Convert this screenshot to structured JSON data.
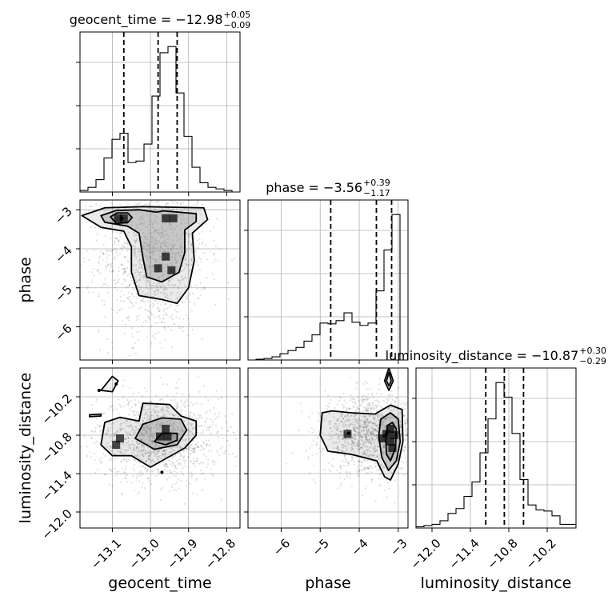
{
  "chart_data": {
    "type": "corner",
    "parameters": [
      {
        "name": "geocent_time",
        "label": "geocent_time",
        "range": [
          -13.185,
          -12.765
        ],
        "ticks": [
          -13.1,
          -13.0,
          -12.9,
          -12.8
        ],
        "tick_labels": [
          "−13.1",
          "−13.0",
          "−12.9",
          "−12.8"
        ]
      },
      {
        "name": "phase",
        "label": "phase",
        "range": [
          -6.85,
          -2.75
        ],
        "ticks": [
          -6,
          -5,
          -4,
          -3
        ],
        "tick_labels": [
          "−6",
          "−5",
          "−4",
          "−3"
        ]
      },
      {
        "name": "luminosity_distance",
        "label": "luminosity_distance",
        "range": [
          -12.25,
          -9.75
        ],
        "ticks": [
          -12.0,
          -11.4,
          -10.8,
          -10.2
        ],
        "tick_labels": [
          "−12.0",
          "−11.4",
          "−10.8",
          "−10.2"
        ]
      }
    ],
    "titles": [
      {
        "param": "geocent_time",
        "prefix": "geocent_time = −12.98",
        "sup": "+0.05",
        "sub": "−0.09"
      },
      {
        "param": "phase",
        "prefix": "phase = −3.56",
        "sup": "+0.39",
        "sub": "−1.17"
      },
      {
        "param": "luminosity_distance",
        "prefix": "luminosity_distance = −10.87",
        "sup": "+0.30",
        "sub": "−0.29"
      }
    ],
    "quantiles": {
      "geocent_time": [
        -13.07,
        -12.98,
        -12.93
      ],
      "phase": [
        -4.73,
        -3.56,
        -3.17
      ],
      "luminosity_distance": [
        -11.16,
        -10.87,
        -10.57
      ]
    },
    "histograms": {
      "geocent_time": {
        "edges": [
          -13.185,
          -13.164,
          -13.143,
          -13.122,
          -13.101,
          -13.08,
          -13.059,
          -13.038,
          -13.017,
          -12.996,
          -12.975,
          -12.954,
          -12.933,
          -12.912,
          -12.891,
          -12.87,
          -12.849,
          -12.828,
          -12.807,
          -12.786,
          -12.765
        ],
        "counts": [
          1,
          3,
          8,
          22,
          34,
          38,
          19,
          20,
          31,
          62,
          90,
          94,
          64,
          36,
          16,
          6,
          3,
          2,
          1,
          0
        ]
      },
      "phase": {
        "edges": [
          -6.85,
          -6.645,
          -6.44,
          -6.235,
          -6.03,
          -5.825,
          -5.62,
          -5.415,
          -5.21,
          -5.005,
          -4.8,
          -4.595,
          -4.39,
          -4.185,
          -3.98,
          -3.775,
          -3.57,
          -3.365,
          -3.16,
          -2.955,
          -2.75
        ],
        "counts": [
          0,
          1,
          2,
          4,
          8,
          12,
          16,
          24,
          32,
          47,
          46,
          50,
          60,
          48,
          44,
          47,
          88,
          140,
          185,
          0
        ]
      },
      "luminosity_distance": {
        "edges": [
          -12.25,
          -12.125,
          -12.0,
          -11.875,
          -11.75,
          -11.625,
          -11.5,
          -11.375,
          -11.25,
          -11.125,
          -11.0,
          -10.875,
          -10.75,
          -10.625,
          -10.5,
          -10.375,
          -10.25,
          -10.125,
          -10.0,
          -9.875,
          -9.75
        ],
        "counts": [
          1,
          2,
          3,
          6,
          12,
          16,
          26,
          38,
          62,
          90,
          120,
          108,
          78,
          40,
          19,
          15,
          14,
          10,
          3,
          3
        ]
      }
    },
    "pairs": [
      {
        "x": "geocent_time",
        "y": "phase",
        "contours": [
          [
            [
              -13.105,
              -3.18
            ],
            [
              -13.088,
              -3.08
            ],
            [
              -13.06,
              -3.08
            ],
            [
              -13.048,
              -3.2
            ],
            [
              -13.06,
              -3.33
            ],
            [
              -13.09,
              -3.35
            ]
          ],
          [
            [
              -13.13,
              -3.15
            ],
            [
              -13.09,
              -3.02
            ],
            [
              -13.03,
              -3.0
            ],
            [
              -12.985,
              -3.06
            ],
            [
              -12.965,
              -3.03
            ],
            [
              -12.88,
              -3.1
            ],
            [
              -12.88,
              -3.3
            ],
            [
              -12.91,
              -3.52
            ],
            [
              -12.91,
              -4.1
            ],
            [
              -12.925,
              -4.6
            ],
            [
              -12.97,
              -4.85
            ],
            [
              -13.01,
              -4.72
            ],
            [
              -13.02,
              -4.22
            ],
            [
              -13.03,
              -3.6
            ],
            [
              -13.06,
              -3.42
            ],
            [
              -13.12,
              -3.32
            ]
          ],
          [
            [
              -13.18,
              -3.15
            ],
            [
              -13.12,
              -2.95
            ],
            [
              -13.02,
              -2.92
            ],
            [
              -12.92,
              -2.94
            ],
            [
              -12.86,
              -2.95
            ],
            [
              -12.85,
              -3.25
            ],
            [
              -12.89,
              -3.6
            ],
            [
              -12.885,
              -4.3
            ],
            [
              -12.9,
              -5.0
            ],
            [
              -12.93,
              -5.4
            ],
            [
              -12.97,
              -5.3
            ],
            [
              -13.03,
              -5.2
            ],
            [
              -13.05,
              -4.6
            ],
            [
              -13.05,
              -3.95
            ],
            [
              -13.07,
              -3.55
            ],
            [
              -13.13,
              -3.45
            ]
          ]
        ],
        "contour_points": [
          [
            -13.075,
            -3.22
          ]
        ],
        "dense_cells": [
          [
            -13.07,
            -3.22
          ],
          [
            -13.085,
            -3.22
          ],
          [
            -12.96,
            -3.22
          ],
          [
            -12.94,
            -3.22
          ],
          [
            -12.96,
            -4.2
          ],
          [
            -12.945,
            -4.55
          ],
          [
            -12.98,
            -4.5
          ]
        ],
        "scatter_core": {
          "cx": -12.99,
          "cy": -4.1,
          "sx": 0.07,
          "sy": 1.05
        }
      },
      {
        "x": "geocent_time",
        "y": "luminosity_distance",
        "contours": [
          [
            [
              -12.99,
              -10.9
            ],
            [
              -12.97,
              -10.77
            ],
            [
              -12.93,
              -10.77
            ],
            [
              -12.93,
              -10.88
            ],
            [
              -12.96,
              -10.95
            ]
          ],
          [
            [
              -13.04,
              -10.85
            ],
            [
              -13.02,
              -10.63
            ],
            [
              -12.97,
              -10.53
            ],
            [
              -12.92,
              -10.55
            ],
            [
              -12.905,
              -10.72
            ],
            [
              -12.93,
              -10.95
            ],
            [
              -12.99,
              -11.02
            ]
          ],
          [
            [
              -13.13,
              -10.95
            ],
            [
              -13.12,
              -10.6
            ],
            [
              -13.08,
              -10.52
            ],
            [
              -13.03,
              -10.58
            ],
            [
              -13.02,
              -10.3
            ],
            [
              -12.95,
              -10.32
            ],
            [
              -12.92,
              -10.5
            ],
            [
              -12.88,
              -10.58
            ],
            [
              -12.88,
              -10.8
            ],
            [
              -12.91,
              -11.0
            ],
            [
              -12.97,
              -11.2
            ],
            [
              -13.0,
              -11.3
            ],
            [
              -13.05,
              -11.12
            ],
            [
              -13.1,
              -11.12
            ]
          ],
          [
            [
              -13.13,
              -10.1
            ],
            [
              -13.1,
              -9.88
            ],
            [
              -13.085,
              -9.95
            ],
            [
              -13.1,
              -10.12
            ]
          ],
          [
            [
              -13.16,
              -10.48
            ],
            [
              -13.13,
              -10.47
            ],
            [
              -13.13,
              -10.5
            ],
            [
              -13.16,
              -10.51
            ]
          ]
        ],
        "contour_points": [
          [
            -13.135,
            -10.1
          ],
          [
            -13.09,
            -10.0
          ],
          [
            -12.97,
            -11.38
          ]
        ],
        "dense_cells": [
          [
            -12.975,
            -10.82
          ],
          [
            -12.955,
            -10.82
          ],
          [
            -12.96,
            -10.7
          ],
          [
            -13.08,
            -10.85
          ],
          [
            -13.09,
            -10.95
          ]
        ],
        "scatter_core": {
          "cx": -12.98,
          "cy": -10.85,
          "sx": 0.08,
          "sy": 0.33
        }
      },
      {
        "x": "phase",
        "y": "luminosity_distance",
        "contours": [
          [
            [
              -3.32,
              -10.88
            ],
            [
              -3.28,
              -10.65
            ],
            [
              -3.15,
              -10.6
            ],
            [
              -3.05,
              -10.7
            ],
            [
              -3.07,
              -11.0
            ],
            [
              -3.2,
              -11.2
            ],
            [
              -3.3,
              -11.1
            ]
          ],
          [
            [
              -3.5,
              -10.82
            ],
            [
              -3.45,
              -10.55
            ],
            [
              -3.2,
              -10.45
            ],
            [
              -3.0,
              -10.55
            ],
            [
              -2.95,
              -10.9
            ],
            [
              -3.05,
              -11.2
            ],
            [
              -3.25,
              -11.35
            ],
            [
              -3.42,
              -11.15
            ]
          ],
          [
            [
              -5.0,
              -10.8
            ],
            [
              -4.95,
              -10.45
            ],
            [
              -4.7,
              -10.42
            ],
            [
              -4.2,
              -10.45
            ],
            [
              -3.6,
              -10.47
            ],
            [
              -3.2,
              -10.33
            ],
            [
              -2.9,
              -10.4
            ],
            [
              -2.88,
              -10.9
            ],
            [
              -3.0,
              -11.25
            ],
            [
              -3.2,
              -11.5
            ],
            [
              -3.35,
              -11.45
            ],
            [
              -3.55,
              -11.2
            ],
            [
              -4.2,
              -11.1
            ],
            [
              -4.8,
              -11.05
            ]
          ],
          [
            [
              -3.35,
              -9.95
            ],
            [
              -3.24,
              -9.75
            ],
            [
              -3.13,
              -9.95
            ],
            [
              -3.24,
              -10.1
            ]
          ],
          [
            [
              -3.3,
              -9.95
            ],
            [
              -3.24,
              -9.82
            ],
            [
              -3.18,
              -9.95
            ],
            [
              -3.24,
              -10.03
            ]
          ]
        ],
        "contour_points": [
          [
            -4.27,
            -10.77
          ],
          [
            -3.3,
            -10.78
          ]
        ],
        "dense_cells": [
          [
            -3.3,
            -10.78
          ],
          [
            -3.2,
            -10.7
          ],
          [
            -3.2,
            -10.9
          ],
          [
            -3.15,
            -11.0
          ],
          [
            -3.1,
            -10.8
          ],
          [
            -3.4,
            -10.85
          ],
          [
            -4.3,
            -10.78
          ]
        ],
        "scatter_core": {
          "cx": -3.7,
          "cy": -10.8,
          "sx": 0.6,
          "sy": 0.3
        }
      }
    ]
  }
}
